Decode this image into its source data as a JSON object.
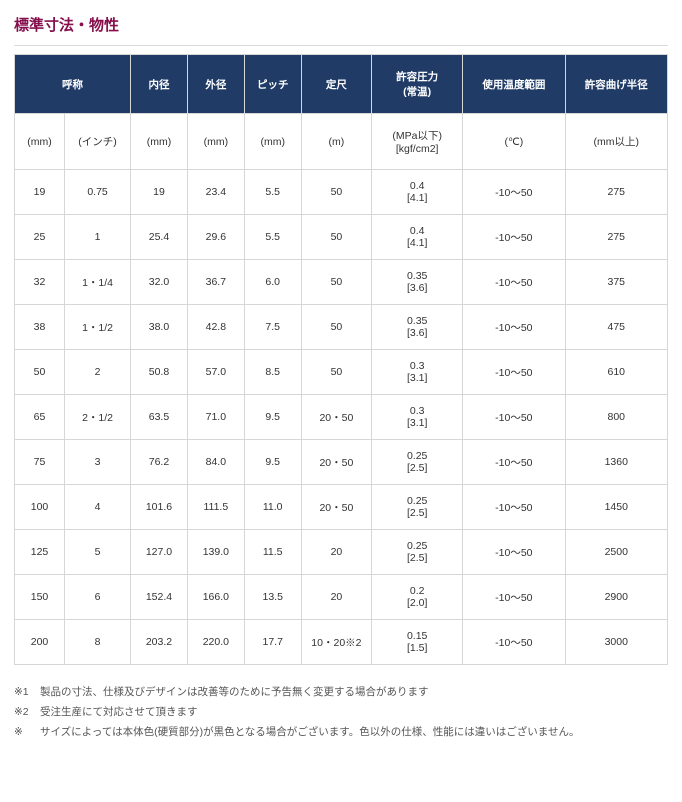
{
  "title": "標準寸法・物性",
  "headers": {
    "nominal": "呼称",
    "inner_dia": "内径",
    "outer_dia": "外径",
    "pitch": "ピッチ",
    "std_len": "定尺",
    "pressure": "許容圧力\n(常温)",
    "temp_range": "使用温度範囲",
    "bend_radius": "許容曲げ半径"
  },
  "units": {
    "nominal_mm": "(mm)",
    "nominal_in": "(インチ)",
    "inner_dia": "(mm)",
    "outer_dia": "(mm)",
    "pitch": "(mm)",
    "std_len": "(m)",
    "pressure": "(MPa以下)\n[kgf/cm2]",
    "temp_range": "(℃)",
    "bend_radius": "(mm以上)"
  },
  "rows": [
    {
      "mm": "19",
      "in": "0.75",
      "id": "19",
      "od": "23.4",
      "pitch": "5.5",
      "len": "50",
      "press": "0.4\n[4.1]",
      "temp": "-10～50",
      "bend": "275"
    },
    {
      "mm": "25",
      "in": "1",
      "id": "25.4",
      "od": "29.6",
      "pitch": "5.5",
      "len": "50",
      "press": "0.4\n[4.1]",
      "temp": "-10～50",
      "bend": "275"
    },
    {
      "mm": "32",
      "in": "1・1/4",
      "id": "32.0",
      "od": "36.7",
      "pitch": "6.0",
      "len": "50",
      "press": "0.35\n[3.6]",
      "temp": "-10～50",
      "bend": "375"
    },
    {
      "mm": "38",
      "in": "1・1/2",
      "id": "38.0",
      "od": "42.8",
      "pitch": "7.5",
      "len": "50",
      "press": "0.35\n[3.6]",
      "temp": "-10～50",
      "bend": "475"
    },
    {
      "mm": "50",
      "in": "2",
      "id": "50.8",
      "od": "57.0",
      "pitch": "8.5",
      "len": "50",
      "press": "0.3\n[3.1]",
      "temp": "-10～50",
      "bend": "610"
    },
    {
      "mm": "65",
      "in": "2・1/2",
      "id": "63.5",
      "od": "71.0",
      "pitch": "9.5",
      "len": "20・50",
      "press": "0.3\n[3.1]",
      "temp": "-10～50",
      "bend": "800"
    },
    {
      "mm": "75",
      "in": "3",
      "id": "76.2",
      "od": "84.0",
      "pitch": "9.5",
      "len": "20・50",
      "press": "0.25\n[2.5]",
      "temp": "-10～50",
      "bend": "1360"
    },
    {
      "mm": "100",
      "in": "4",
      "id": "101.6",
      "od": "111.5",
      "pitch": "11.0",
      "len": "20・50",
      "press": "0.25\n[2.5]",
      "temp": "-10～50",
      "bend": "1450"
    },
    {
      "mm": "125",
      "in": "5",
      "id": "127.0",
      "od": "139.0",
      "pitch": "11.5",
      "len": "20",
      "press": "0.25\n[2.5]",
      "temp": "-10～50",
      "bend": "2500"
    },
    {
      "mm": "150",
      "in": "6",
      "id": "152.4",
      "od": "166.0",
      "pitch": "13.5",
      "len": "20",
      "press": "0.2\n[2.0]",
      "temp": "-10～50",
      "bend": "2900"
    },
    {
      "mm": "200",
      "in": "8",
      "id": "203.2",
      "od": "220.0",
      "pitch": "17.7",
      "len": "10・20※2",
      "press": "0.15\n[1.5]",
      "temp": "-10～50",
      "bend": "3000"
    }
  ],
  "notes": [
    {
      "marker": "※1",
      "text": "製品の寸法、仕様及びデザインは改善等のために予告無く変更する場合があります"
    },
    {
      "marker": "※2",
      "text": "受注生産にて対応させて頂きます"
    },
    {
      "marker": "※",
      "text": "サイズによっては本体色(硬質部分)が黒色となる場合がございます。色以外の仕様、性能には違いはございません。"
    }
  ],
  "colors": {
    "title": "#86104d",
    "header_bg": "#1f3b66",
    "header_fg": "#ffffff",
    "border": "#d6d6d6",
    "text": "#333333",
    "note_text": "#555555",
    "background": "#ffffff"
  }
}
